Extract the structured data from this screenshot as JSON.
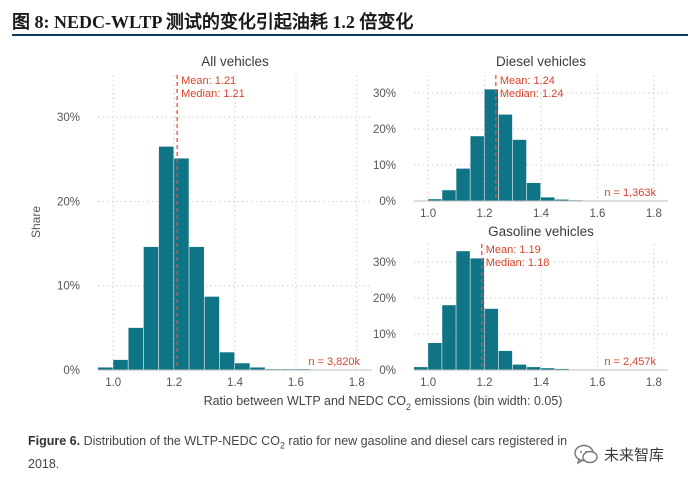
{
  "header": {
    "title": "图 8: NEDC-WLTP 测试的变化引起油耗 1.2 倍变化"
  },
  "caption": {
    "label": "Figure 6.",
    "text_prefix": "Distribution of the WLTP-NEDC CO",
    "text_sub": "2",
    "text_suffix": " ratio for new gasoline and diesel cars registered in 2018."
  },
  "watermark": {
    "text": "未来智库",
    "icon": "wechat-bubble-icon"
  },
  "colors": {
    "bar": "#0f7486",
    "mean_line": "#e2533b",
    "label": "#d9432b",
    "grid": "#cfcfcf",
    "text": "#555555"
  },
  "chart_data": {
    "shared": {
      "xlabel_prefix": "Ratio between WLTP and NEDC CO",
      "xlabel_sub": "2",
      "xlabel_suffix": " emissions (bin width: 0.05)",
      "ylabel": "Share"
    },
    "charts": [
      {
        "type": "bar",
        "title": "All vehicles",
        "x_range": [
          0.95,
          1.85
        ],
        "y_range": [
          0,
          35
        ],
        "xticks": [
          1.0,
          1.2,
          1.4,
          1.6,
          1.8
        ],
        "xtick_labels": [
          "1.0",
          "1.2",
          "1.4",
          "1.6",
          "1.8"
        ],
        "yticks": [
          0,
          10,
          20,
          30
        ],
        "ytick_labels": [
          "0%",
          "10%",
          "20%",
          "30%"
        ],
        "bin_width": 0.05,
        "bins": [
          0.975,
          1.025,
          1.075,
          1.125,
          1.175,
          1.225,
          1.275,
          1.325,
          1.375,
          1.425,
          1.475,
          1.525,
          1.575,
          1.625
        ],
        "values": [
          0.3,
          1.2,
          5,
          14.6,
          26.5,
          25.1,
          14.6,
          8.7,
          2.1,
          0.8,
          0.3,
          0.1,
          0.1,
          0.1
        ],
        "mean": 1.21,
        "mean_label": "Mean: 1.21",
        "median_label": "Median: 1.21",
        "n_label": "n = 3,820k"
      },
      {
        "type": "bar",
        "title": "Diesel vehicles",
        "x_range": [
          0.95,
          1.85
        ],
        "y_range": [
          0,
          35
        ],
        "xticks": [
          1.0,
          1.2,
          1.4,
          1.6,
          1.8
        ],
        "xtick_labels": [
          "1.0",
          "1.2",
          "1.4",
          "1.6",
          "1.8"
        ],
        "yticks": [
          0,
          10,
          20,
          30
        ],
        "ytick_labels": [
          "0%",
          "10%",
          "20%",
          "30%"
        ],
        "bin_width": 0.05,
        "bins": [
          1.025,
          1.075,
          1.125,
          1.175,
          1.225,
          1.275,
          1.325,
          1.375,
          1.425,
          1.475,
          1.525
        ],
        "values": [
          0.5,
          3,
          9,
          18,
          31,
          24,
          17,
          5,
          1,
          0.4,
          0.2
        ],
        "mean": 1.24,
        "mean_label": "Mean: 1.24",
        "median_label": "Median: 1.24",
        "n_label": "n = 1,363k"
      },
      {
        "type": "bar",
        "title": "Gasoline vehicles",
        "x_range": [
          0.95,
          1.85
        ],
        "y_range": [
          0,
          35
        ],
        "xticks": [
          1.0,
          1.2,
          1.4,
          1.6,
          1.8
        ],
        "xtick_labels": [
          "1.0",
          "1.2",
          "1.4",
          "1.6",
          "1.8"
        ],
        "yticks": [
          0,
          10,
          20,
          30
        ],
        "ytick_labels": [
          "0%",
          "10%",
          "20%",
          "30%"
        ],
        "bin_width": 0.05,
        "bins": [
          0.975,
          1.025,
          1.075,
          1.125,
          1.175,
          1.225,
          1.275,
          1.325,
          1.375,
          1.425,
          1.475
        ],
        "values": [
          0.8,
          7.5,
          18,
          33,
          31,
          17,
          5.3,
          1.5,
          0.8,
          0.5,
          0.3
        ],
        "mean": 1.19,
        "mean_label": "Mean: 1.19",
        "median_label": "Median: 1.18",
        "n_label": "n = 2,457k"
      }
    ]
  }
}
